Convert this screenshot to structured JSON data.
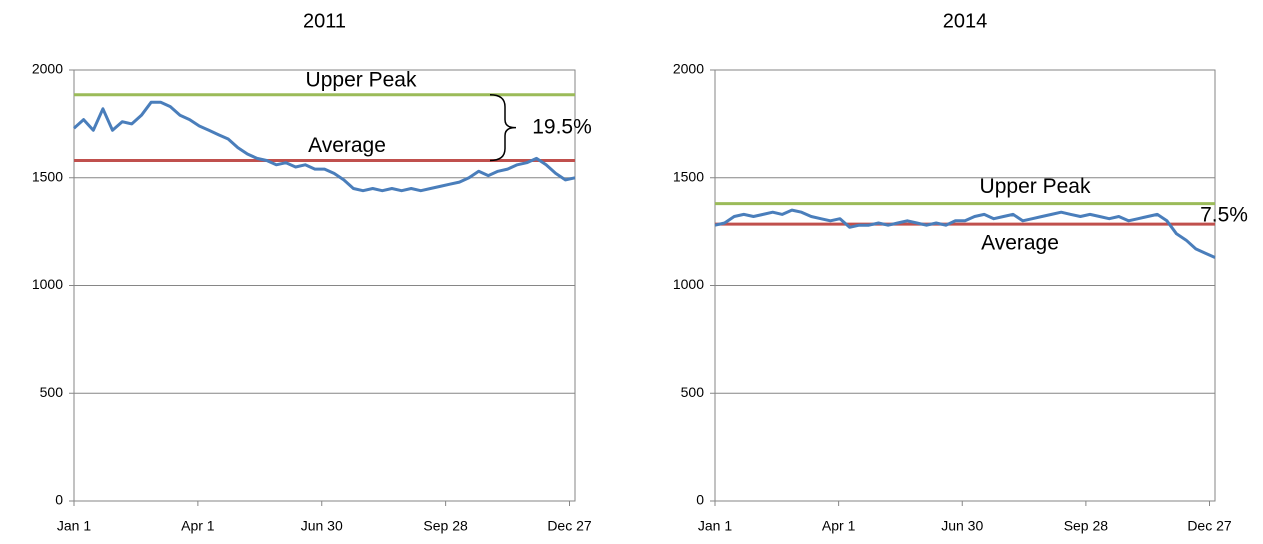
{
  "chart_data": [
    {
      "type": "line",
      "title": "2011",
      "x": [
        0,
        7,
        14,
        21,
        28,
        35,
        42,
        49,
        56,
        63,
        70,
        77,
        84,
        91,
        98,
        105,
        112,
        119,
        126,
        133,
        140,
        147,
        154,
        161,
        168,
        175,
        182,
        189,
        196,
        203,
        210,
        217,
        224,
        231,
        238,
        245,
        252,
        259,
        266,
        273,
        280,
        287,
        294,
        301,
        308,
        315,
        322,
        329,
        336,
        343,
        350,
        357,
        364
      ],
      "series": [
        {
          "color": "#4a7ebb",
          "values": [
            1730,
            1770,
            1720,
            1820,
            1720,
            1760,
            1750,
            1790,
            1850,
            1850,
            1830,
            1790,
            1770,
            1740,
            1720,
            1700,
            1680,
            1640,
            1610,
            1590,
            1580,
            1560,
            1570,
            1550,
            1560,
            1540,
            1540,
            1520,
            1490,
            1450,
            1440,
            1450,
            1440,
            1450,
            1440,
            1450,
            1440,
            1450,
            1460,
            1470,
            1480,
            1500,
            1530,
            1510,
            1530,
            1540,
            1560,
            1570,
            1590,
            1560,
            1520,
            1490,
            1500
          ]
        }
      ],
      "reference_lines": [
        {
          "label": "Upper Peak",
          "value": 1885,
          "color": "#9bbb59"
        },
        {
          "label": "Average",
          "value": 1580,
          "color": "#c0504d"
        }
      ],
      "annotation": "19.5%",
      "xlim": [
        0,
        364
      ],
      "xticks": [
        {
          "value": 0,
          "label": "Jan 1"
        },
        {
          "value": 90,
          "label": "Apr 1"
        },
        {
          "value": 180,
          "label": "Jun 30"
        },
        {
          "value": 270,
          "label": "Sep 28"
        },
        {
          "value": 360,
          "label": "Dec 27"
        }
      ],
      "ylim": [
        0,
        2000
      ],
      "yticks": [
        0,
        500,
        1000,
        1500,
        2000
      ],
      "grid": true
    },
    {
      "type": "line",
      "title": "2014",
      "x": [
        0,
        7,
        14,
        21,
        28,
        35,
        42,
        49,
        56,
        63,
        70,
        77,
        84,
        91,
        98,
        105,
        112,
        119,
        126,
        133,
        140,
        147,
        154,
        161,
        168,
        175,
        182,
        189,
        196,
        203,
        210,
        217,
        224,
        231,
        238,
        245,
        252,
        259,
        266,
        273,
        280,
        287,
        294,
        301,
        308,
        315,
        322,
        329,
        336,
        343,
        350,
        357,
        364
      ],
      "series": [
        {
          "color": "#4a7ebb",
          "values": [
            1280,
            1290,
            1320,
            1330,
            1320,
            1330,
            1340,
            1330,
            1350,
            1340,
            1320,
            1310,
            1300,
            1310,
            1270,
            1280,
            1280,
            1290,
            1280,
            1290,
            1300,
            1290,
            1280,
            1290,
            1280,
            1300,
            1300,
            1320,
            1330,
            1310,
            1320,
            1330,
            1300,
            1310,
            1320,
            1330,
            1340,
            1330,
            1320,
            1330,
            1320,
            1310,
            1320,
            1300,
            1310,
            1320,
            1330,
            1300,
            1240,
            1210,
            1170,
            1150,
            1130
          ]
        }
      ],
      "reference_lines": [
        {
          "label": "Upper Peak",
          "value": 1380,
          "color": "#9bbb59"
        },
        {
          "label": "Average",
          "value": 1285,
          "color": "#c0504d"
        }
      ],
      "annotation": "7.5%",
      "xlim": [
        0,
        364
      ],
      "xticks": [
        {
          "value": 0,
          "label": "Jan 1"
        },
        {
          "value": 90,
          "label": "Apr 1"
        },
        {
          "value": 180,
          "label": "Jun 30"
        },
        {
          "value": 270,
          "label": "Sep 28"
        },
        {
          "value": 360,
          "label": "Dec 27"
        }
      ],
      "ylim": [
        0,
        2000
      ],
      "yticks": [
        0,
        500,
        1000,
        1500,
        2000
      ],
      "grid": true
    }
  ]
}
